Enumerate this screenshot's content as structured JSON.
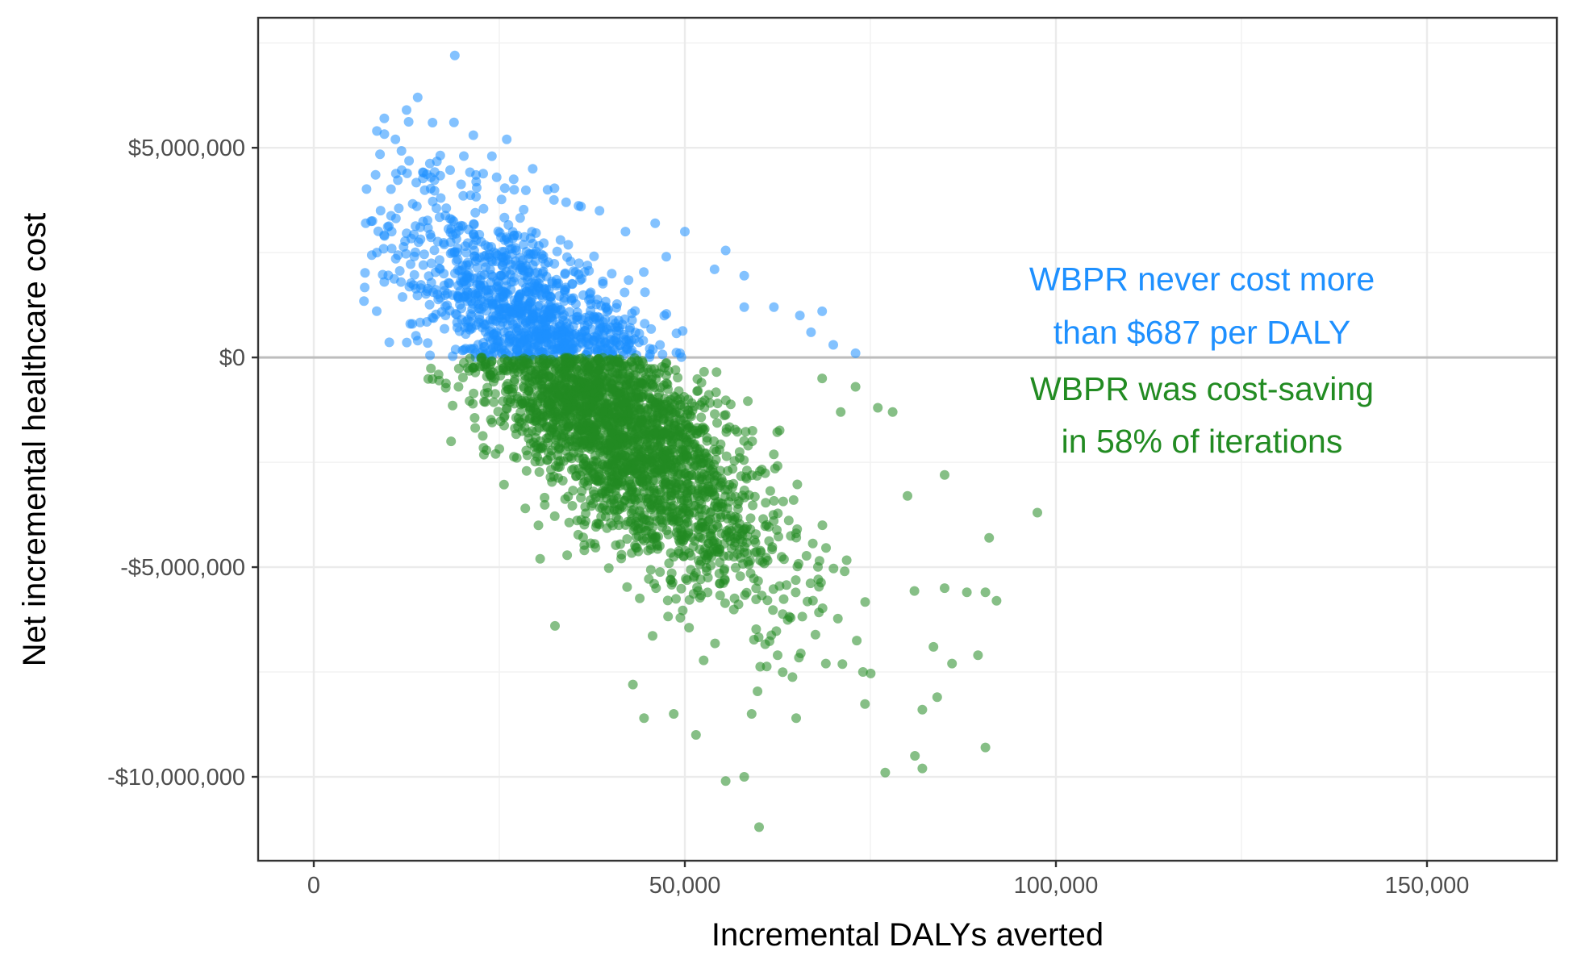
{
  "chart_data": {
    "type": "scatter",
    "title": "",
    "xlabel": "Incremental DALYs averted",
    "ylabel": "Net incremental healthcare cost",
    "xlim": [
      -7500,
      167500
    ],
    "ylim": [
      -12000000,
      8100000
    ],
    "x_ticks": [
      0,
      50000,
      100000,
      150000
    ],
    "x_tick_labels": [
      "0",
      "50,000",
      "100,000",
      "150,000"
    ],
    "y_ticks": [
      5000000,
      0,
      -5000000,
      -10000000
    ],
    "y_tick_labels": [
      "$5,000,000",
      "$0",
      "-$5,000,000",
      "-$10,000,000"
    ],
    "grid": true,
    "reference_line": {
      "y": 0,
      "color": "#bdbdbd"
    },
    "series": [
      {
        "color": "#1e90ff",
        "opacity": 0.55,
        "condition": "y >= 0",
        "outlier_points": [
          [
            19000,
            7200000
          ],
          [
            14000,
            6200000
          ],
          [
            12500,
            5900000
          ],
          [
            9500,
            5700000
          ],
          [
            8500,
            5400000
          ],
          [
            11000,
            5200000
          ],
          [
            16000,
            5600000
          ],
          [
            21500,
            5300000
          ],
          [
            26000,
            5200000
          ],
          [
            29500,
            4500000
          ],
          [
            31500,
            4000000
          ],
          [
            34000,
            3700000
          ],
          [
            38500,
            3500000
          ],
          [
            42000,
            3000000
          ],
          [
            46000,
            3200000
          ],
          [
            50000,
            3000000
          ],
          [
            55500,
            2550000
          ],
          [
            54000,
            2100000
          ],
          [
            58000,
            1950000
          ],
          [
            58000,
            1200000
          ],
          [
            62000,
            1200000
          ],
          [
            68500,
            1100000
          ],
          [
            65500,
            1000000
          ],
          [
            70000,
            300000
          ],
          [
            73000,
            100000
          ],
          [
            67000,
            600000
          ],
          [
            7000,
            3200000
          ],
          [
            8500,
            2500000
          ],
          [
            9500,
            1800000
          ],
          [
            13000,
            800000
          ],
          [
            14000,
            400000
          ],
          [
            10500,
            3000000
          ],
          [
            24000,
            4800000
          ],
          [
            27000,
            4000000
          ],
          [
            36000,
            3600000
          ],
          [
            47500,
            2400000
          ]
        ]
      },
      {
        "color": "#228b22",
        "opacity": 0.55,
        "condition": "y < 0",
        "outlier_points": [
          [
            18500,
            -2000000
          ],
          [
            97500,
            -3700000
          ],
          [
            92000,
            -5800000
          ],
          [
            90500,
            -5600000
          ],
          [
            91000,
            -4300000
          ],
          [
            90500,
            -9300000
          ],
          [
            89500,
            -7100000
          ],
          [
            85000,
            -5500000
          ],
          [
            85000,
            -2800000
          ],
          [
            84000,
            -8100000
          ],
          [
            82000,
            -8400000
          ],
          [
            82000,
            -9800000
          ],
          [
            77000,
            -9900000
          ],
          [
            81000,
            -9500000
          ],
          [
            60000,
            -11200000
          ],
          [
            58000,
            -10000000
          ],
          [
            55500,
            -10100000
          ],
          [
            51500,
            -9000000
          ],
          [
            48500,
            -8500000
          ],
          [
            44500,
            -8600000
          ],
          [
            43000,
            -7800000
          ],
          [
            32500,
            -6400000
          ],
          [
            30500,
            -4800000
          ],
          [
            28500,
            -3600000
          ],
          [
            24500,
            -2300000
          ],
          [
            19500,
            -700000
          ],
          [
            88000,
            -5600000
          ],
          [
            86000,
            -7300000
          ],
          [
            83500,
            -6900000
          ],
          [
            80000,
            -3300000
          ],
          [
            76000,
            -1200000
          ],
          [
            78000,
            -1300000
          ],
          [
            71000,
            -1300000
          ],
          [
            73000,
            -700000
          ],
          [
            68500,
            -500000
          ],
          [
            62500,
            -7100000
          ],
          [
            65000,
            -8600000
          ],
          [
            59000,
            -8500000
          ],
          [
            69000,
            -7300000
          ],
          [
            74000,
            -7500000
          ]
        ]
      }
    ],
    "annotations": [
      {
        "text": "WBPR never cost more",
        "color": "#1e90ff"
      },
      {
        "text": "than $687 per DALY",
        "color": "#1e90ff"
      },
      {
        "text": "WBPR was cost-saving",
        "color": "#228b22"
      },
      {
        "text": "in 58% of iterations",
        "color": "#228b22"
      }
    ]
  }
}
